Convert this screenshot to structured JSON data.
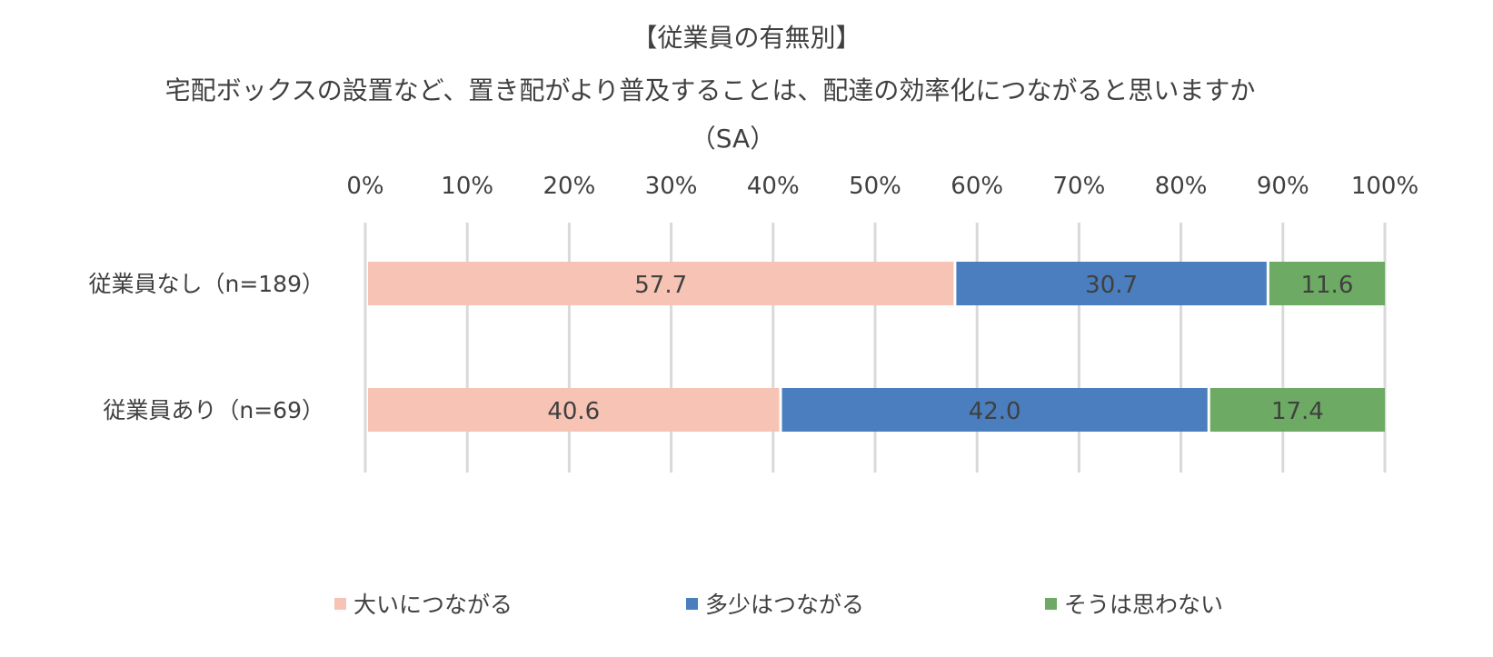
{
  "chart_data": {
    "type": "bar",
    "orientation": "horizontal",
    "stacked": "100%",
    "title_lines": [
      "【従業員の有無別】",
      "宅配ボックスの設置など、置き配がより普及することは、配達の効率化につながると思いますか",
      "（SA）"
    ],
    "categories": [
      "従業員なし（n=189）",
      "従業員あり（n=69）"
    ],
    "series": [
      {
        "name": "大いにつながる",
        "values": [
          57.7,
          40.6
        ],
        "color": "#F7C3B4"
      },
      {
        "name": "多少はつながる",
        "values": [
          30.7,
          42.0
        ],
        "color": "#4A7EBE"
      },
      {
        "name": "そうは思わない",
        "values": [
          11.6,
          17.4
        ],
        "color": "#6DAA63"
      }
    ],
    "value_labels": [
      [
        "57.7",
        "30.7",
        "11.6"
      ],
      [
        "40.6",
        "42.0",
        "17.4"
      ]
    ],
    "xlim": [
      0,
      100
    ],
    "xticks": [
      "0%",
      "10%",
      "20%",
      "30%",
      "40%",
      "50%",
      "60%",
      "70%",
      "80%",
      "90%",
      "100%"
    ],
    "grid": true,
    "legend_position": "bottom"
  }
}
